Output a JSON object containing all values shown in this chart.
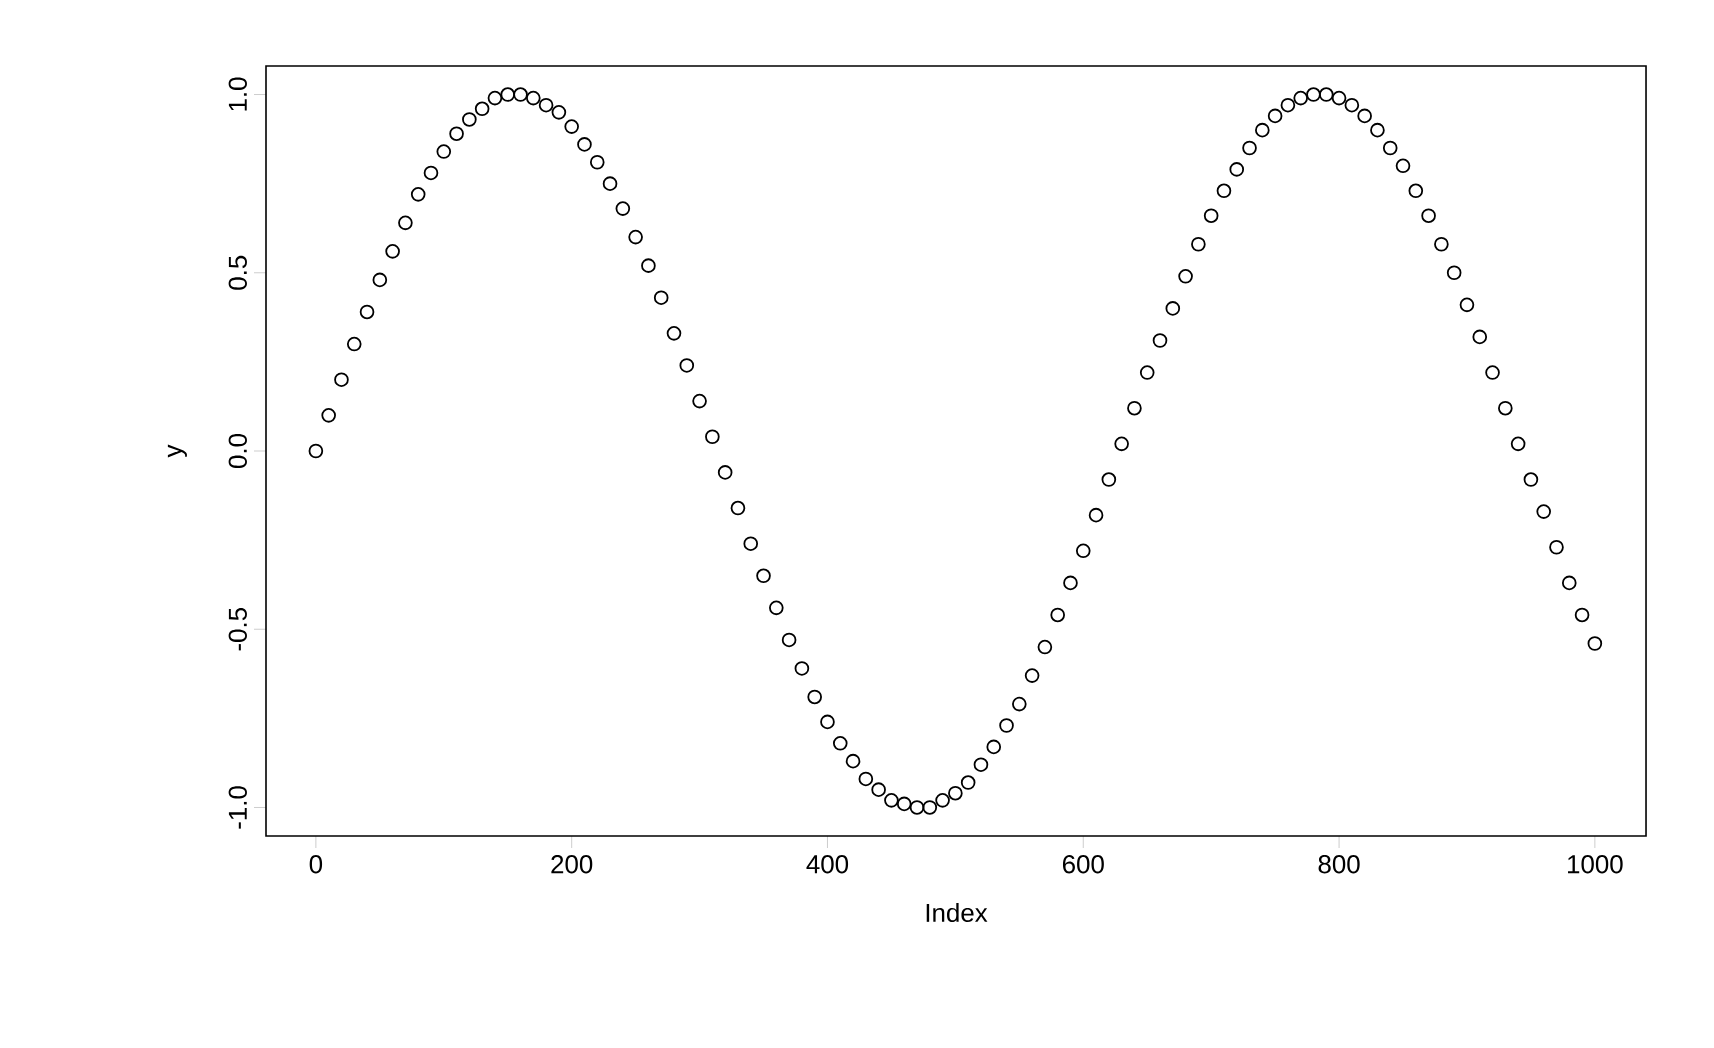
{
  "chart_data": {
    "type": "scatter",
    "xlabel": "Index",
    "ylabel": "y",
    "x": [
      0,
      10,
      20,
      30,
      40,
      50,
      60,
      70,
      80,
      90,
      100,
      110,
      120,
      130,
      140,
      150,
      160,
      170,
      180,
      190,
      200,
      210,
      220,
      230,
      240,
      250,
      260,
      270,
      280,
      290,
      300,
      310,
      320,
      330,
      340,
      350,
      360,
      370,
      380,
      390,
      400,
      410,
      420,
      430,
      440,
      450,
      460,
      470,
      480,
      490,
      500,
      510,
      520,
      530,
      540,
      550,
      560,
      570,
      580,
      590,
      600,
      610,
      620,
      630,
      640,
      650,
      660,
      670,
      680,
      690,
      700,
      710,
      720,
      730,
      740,
      750,
      760,
      770,
      780,
      790,
      800,
      810,
      820,
      830,
      840,
      850,
      860,
      870,
      880,
      890,
      900,
      910,
      920,
      930,
      940,
      950,
      960,
      970,
      980,
      990,
      1000
    ],
    "series": [
      {
        "color": "#000000",
        "values": [
          0.0,
          0.1,
          0.2,
          0.3,
          0.39,
          0.48,
          0.56,
          0.64,
          0.72,
          0.78,
          0.84,
          0.89,
          0.93,
          0.96,
          0.99,
          1.0,
          1.0,
          0.99,
          0.97,
          0.95,
          0.91,
          0.86,
          0.81,
          0.75,
          0.68,
          0.6,
          0.52,
          0.43,
          0.33,
          0.24,
          0.14,
          0.04,
          -0.06,
          -0.16,
          -0.26,
          -0.35,
          -0.44,
          -0.53,
          -0.61,
          -0.69,
          -0.76,
          -0.82,
          -0.87,
          -0.92,
          -0.95,
          -0.98,
          -0.99,
          -1.0,
          -1.0,
          -0.98,
          -0.96,
          -0.93,
          -0.88,
          -0.83,
          -0.77,
          -0.71,
          -0.63,
          -0.55,
          -0.46,
          -0.37,
          -0.28,
          -0.18,
          -0.08,
          0.02,
          0.12,
          0.22,
          0.31,
          0.4,
          0.49,
          0.58,
          0.66,
          0.73,
          0.79,
          0.85,
          0.9,
          0.94,
          0.97,
          0.99,
          1.0,
          1.0,
          0.99,
          0.97,
          0.94,
          0.9,
          0.85,
          0.8,
          0.73,
          0.66,
          0.58,
          0.5,
          0.41,
          0.32,
          0.22,
          0.12,
          0.02,
          -0.08,
          -0.17,
          -0.27,
          -0.37,
          -0.46,
          -0.54
        ]
      }
    ],
    "marker": "circle",
    "xlim": [
      -39,
      1040
    ],
    "ylim": [
      -1.08,
      1.08
    ],
    "xticks": [
      0,
      200,
      400,
      600,
      800,
      1000
    ],
    "yticks": [
      {
        "value": -1.0,
        "label": "-1.0"
      },
      {
        "value": -0.5,
        "label": "-0.5"
      },
      {
        "value": 0.0,
        "label": "0.0"
      },
      {
        "value": 0.5,
        "label": "0.5"
      },
      {
        "value": 1.0,
        "label": "1.0"
      }
    ]
  }
}
